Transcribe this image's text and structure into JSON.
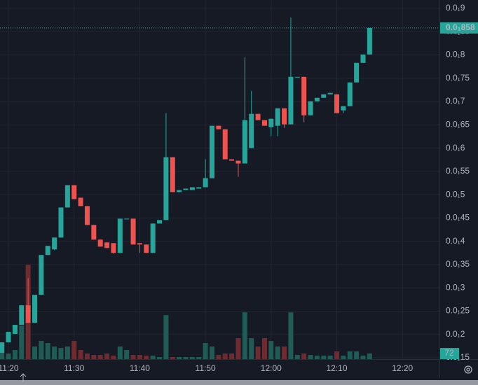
{
  "chart_data": {
    "type": "candlestick",
    "x": [
      "11:19",
      "11:20",
      "11:21",
      "11:22",
      "11:23",
      "11:24",
      "11:25",
      "11:26",
      "11:27",
      "11:28",
      "11:29",
      "11:30",
      "11:31",
      "11:32",
      "11:33",
      "11:34",
      "11:35",
      "11:36",
      "11:37",
      "11:38",
      "11:39",
      "11:40",
      "11:41",
      "11:42",
      "11:43",
      "11:44",
      "11:45",
      "11:46",
      "11:47",
      "11:48",
      "11:49",
      "11:50",
      "11:51",
      "11:52",
      "11:53",
      "11:54",
      "11:55",
      "11:56",
      "11:57",
      "11:58",
      "11:59",
      "12:00",
      "12:01",
      "12:02",
      "12:03",
      "12:04",
      "12:05",
      "12:06",
      "12:07",
      "12:08",
      "12:09",
      "12:10",
      "12:11",
      "12:12",
      "12:13",
      "12:14",
      "12:15"
    ],
    "open": [
      0.001605,
      0.00183,
      0.00201,
      0.002205,
      0.002625,
      0.00225,
      0.00285,
      0.003705,
      0.003825,
      0.00408,
      0.004725,
      0.005205,
      0.004935,
      0.004755,
      0.00435,
      0.004035,
      0.003975,
      0.00396,
      0.00375,
      0.004485,
      0.004485,
      0.00396,
      0.00393,
      0.00375,
      0.00438,
      0.004455,
      0.005805,
      0.005055,
      0.0051,
      0.0051,
      0.00513,
      0.00516,
      0.005355,
      0.00648,
      0.006405,
      0.00576,
      0.00573,
      0.00567,
      0.006,
      0.006735,
      0.0066,
      0.00645,
      0.00648,
      0.006855,
      0.00651,
      0.00753,
      0.00753,
      0.006705,
      0.007005,
      0.00708,
      0.007155,
      0.007155,
      0.00681,
      0.0069,
      0.00741,
      0.00783,
      0.00801
    ],
    "high": [
      0.00183,
      0.002055,
      0.002205,
      0.002625,
      0.00321,
      0.00285,
      0.003705,
      0.0039,
      0.00408,
      0.004725,
      0.005205,
      0.005205,
      0.004935,
      0.004755,
      0.00435,
      0.004035,
      0.003975,
      0.00396,
      0.004485,
      0.004485,
      0.004485,
      0.00396,
      0.00393,
      0.00438,
      0.004455,
      0.00675,
      0.005805,
      0.0051,
      0.00513,
      0.00516,
      0.00516,
      0.00576,
      0.00648,
      0.00648,
      0.006405,
      0.00576,
      0.00573,
      0.00795,
      0.00723,
      0.006735,
      0.0066,
      0.00663,
      0.006855,
      0.006855,
      0.008805,
      0.00753,
      0.00753,
      0.007005,
      0.00708,
      0.007155,
      0.007185,
      0.007155,
      0.0069,
      0.00741,
      0.00783,
      0.00801,
      0.00858
    ],
    "low": [
      0.001605,
      0.00183,
      0.00201,
      0.002205,
      0.00225,
      0.00225,
      0.00285,
      0.003705,
      0.00381,
      0.00408,
      0.004725,
      0.004905,
      0.004755,
      0.00435,
      0.004035,
      0.003885,
      0.003855,
      0.003735,
      0.00375,
      0.004485,
      0.00393,
      0.00375,
      0.00375,
      0.00375,
      0.00438,
      0.004455,
      0.005055,
      0.005055,
      0.0051,
      0.0051,
      0.00513,
      0.00516,
      0.005355,
      0.006405,
      0.00576,
      0.00573,
      0.005385,
      0.00567,
      0.006,
      0.0066,
      0.00648,
      0.006255,
      0.006255,
      0.006435,
      0.00651,
      0.00753,
      0.006555,
      0.006705,
      0.007005,
      0.00708,
      0.007155,
      0.00675,
      0.00675,
      0.0069,
      0.00741,
      0.00783,
      0.00801
    ],
    "close": [
      0.00183,
      0.002055,
      0.002205,
      0.002625,
      0.00225,
      0.00285,
      0.003705,
      0.0039,
      0.00408,
      0.004725,
      0.005205,
      0.004905,
      0.004755,
      0.00435,
      0.004035,
      0.003885,
      0.003855,
      0.00375,
      0.004485,
      0.004485,
      0.00393,
      0.00393,
      0.00375,
      0.00438,
      0.004455,
      0.005805,
      0.005055,
      0.0051,
      0.00513,
      0.00516,
      0.00516,
      0.005355,
      0.00648,
      0.006405,
      0.00576,
      0.00573,
      0.00567,
      0.0066,
      0.006735,
      0.0066,
      0.00648,
      0.00663,
      0.006855,
      0.00651,
      0.00753,
      0.00753,
      0.006705,
      0.007005,
      0.00708,
      0.007155,
      0.007185,
      0.00675,
      0.0069,
      0.00741,
      0.00783,
      0.00801,
      0.00858
    ],
    "volume": [
      207,
      72,
      117,
      432,
      1215,
      162,
      234,
      207,
      162,
      144,
      162,
      234,
      117,
      72,
      54,
      54,
      72,
      45,
      162,
      117,
      54,
      54,
      45,
      45,
      27,
      567,
      27,
      27,
      27,
      27,
      27,
      207,
      162,
      54,
      72,
      72,
      270,
      603,
      270,
      162,
      270,
      234,
      162,
      162,
      603,
      54,
      72,
      54,
      45,
      45,
      45,
      99,
      45,
      99,
      99,
      45,
      72
    ],
    "last_price_label": "0.0₁858",
    "up_color": "#26a69a",
    "down_color": "#ef5350",
    "volume_up_color": "#1f5c55",
    "volume_down_color": "#6e2b30",
    "xlim": [
      "11:18:43",
      "12:25:38"
    ],
    "xticks": [
      "11:20",
      "11:30",
      "11:40",
      "11:50",
      "12:00",
      "12:10",
      "12:20"
    ],
    "ylim": [
      0.00147,
      0.00918
    ],
    "yticks": [
      {
        "value": 0.0015,
        "label": "0.0₁15"
      },
      {
        "value": 0.002,
        "label": "0.0₁2"
      },
      {
        "value": 0.0025,
        "label": "0.0₁25"
      },
      {
        "value": 0.003,
        "label": "0.0₁3"
      },
      {
        "value": 0.0035,
        "label": "0.0₁35"
      },
      {
        "value": 0.004,
        "label": "0.0₁4"
      },
      {
        "value": 0.0045,
        "label": "0.0₁45"
      },
      {
        "value": 0.005,
        "label": "0.0₁5"
      },
      {
        "value": 0.0055,
        "label": "0.0₁55"
      },
      {
        "value": 0.006,
        "label": "0.0₁6"
      },
      {
        "value": 0.0065,
        "label": "0.0₁65"
      },
      {
        "value": 0.007,
        "label": "0.0₁7"
      },
      {
        "value": 0.0075,
        "label": "0.0₁75"
      },
      {
        "value": 0.008,
        "label": "0.0₁8"
      },
      {
        "value": 0.0085,
        "label": "0.0₁85"
      },
      {
        "value": 0.009,
        "label": "0.0₁9"
      }
    ],
    "volume_ylim": [
      0,
      1300
    ],
    "grid": true
  }
}
